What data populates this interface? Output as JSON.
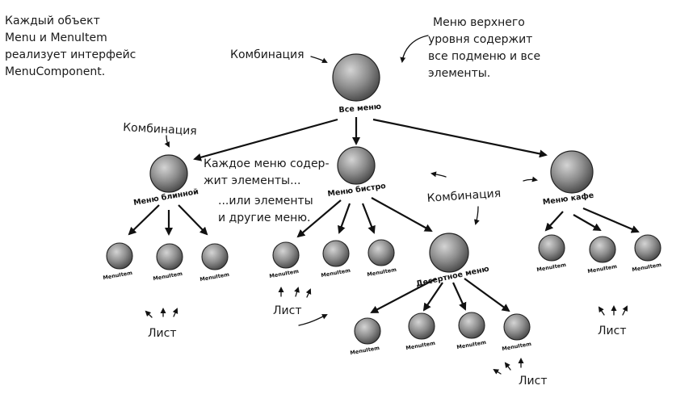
{
  "notes": {
    "top_left": [
      "Каждый объект",
      "Menu и MenuItem",
      "реализует интерфейс",
      "MenuComponent."
    ],
    "top_right": [
      "Меню верхнего",
      "уровня содержит",
      "все подменю и все",
      "элементы."
    ],
    "middle": [
      "Каждое меню содер-",
      "жит элементы...",
      "...или элементы",
      "и другие меню."
    ]
  },
  "labels": {
    "composite": "Комбинация",
    "leaf": "Лист"
  },
  "nodes": {
    "root": "Все меню",
    "pancake": "Меню блинной",
    "diner": "Меню бистро",
    "cafe": "Меню кафе",
    "dessert": "Десертное меню",
    "menu_item": "MenuItem"
  }
}
